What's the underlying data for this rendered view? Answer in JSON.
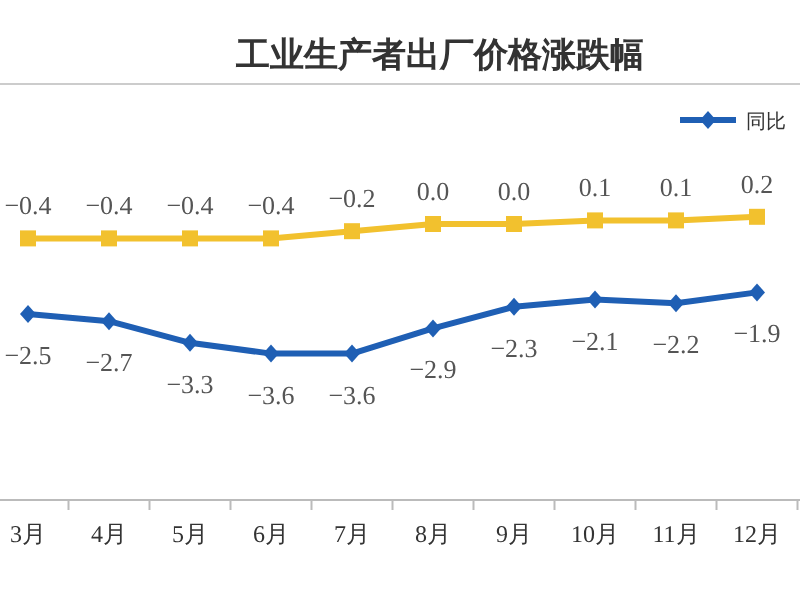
{
  "chart_data": {
    "type": "line",
    "title": "工业生产者出厂价格涨跌幅",
    "categories": [
      "3月",
      "4月",
      "5月",
      "6月",
      "7月",
      "8月",
      "9月",
      "10月",
      "11月",
      "12月"
    ],
    "series": [
      {
        "name": "同比",
        "color": "#1f5fb4",
        "marker": "diamond",
        "values": [
          -2.5,
          -2.7,
          -3.3,
          -3.6,
          -3.6,
          -2.9,
          -2.3,
          -2.1,
          -2.2,
          -1.9
        ],
        "value_labels": [
          "−2.5",
          "−2.7",
          "−3.3",
          "−3.6",
          "−3.6",
          "−2.9",
          "−2.3",
          "−2.1",
          "−2.2",
          "−1.9"
        ]
      },
      {
        "color": "#f2c12e",
        "marker": "square",
        "values": [
          -0.4,
          -0.4,
          -0.4,
          -0.4,
          -0.2,
          0.0,
          0.0,
          0.1,
          0.1,
          0.2
        ],
        "value_labels": [
          "−0.4",
          "−0.4",
          "−0.4",
          "−0.4",
          "−0.2",
          "0.0",
          "0.0",
          "0.1",
          "0.1",
          "0.2"
        ]
      }
    ],
    "legend": "top right",
    "grid": false
  }
}
